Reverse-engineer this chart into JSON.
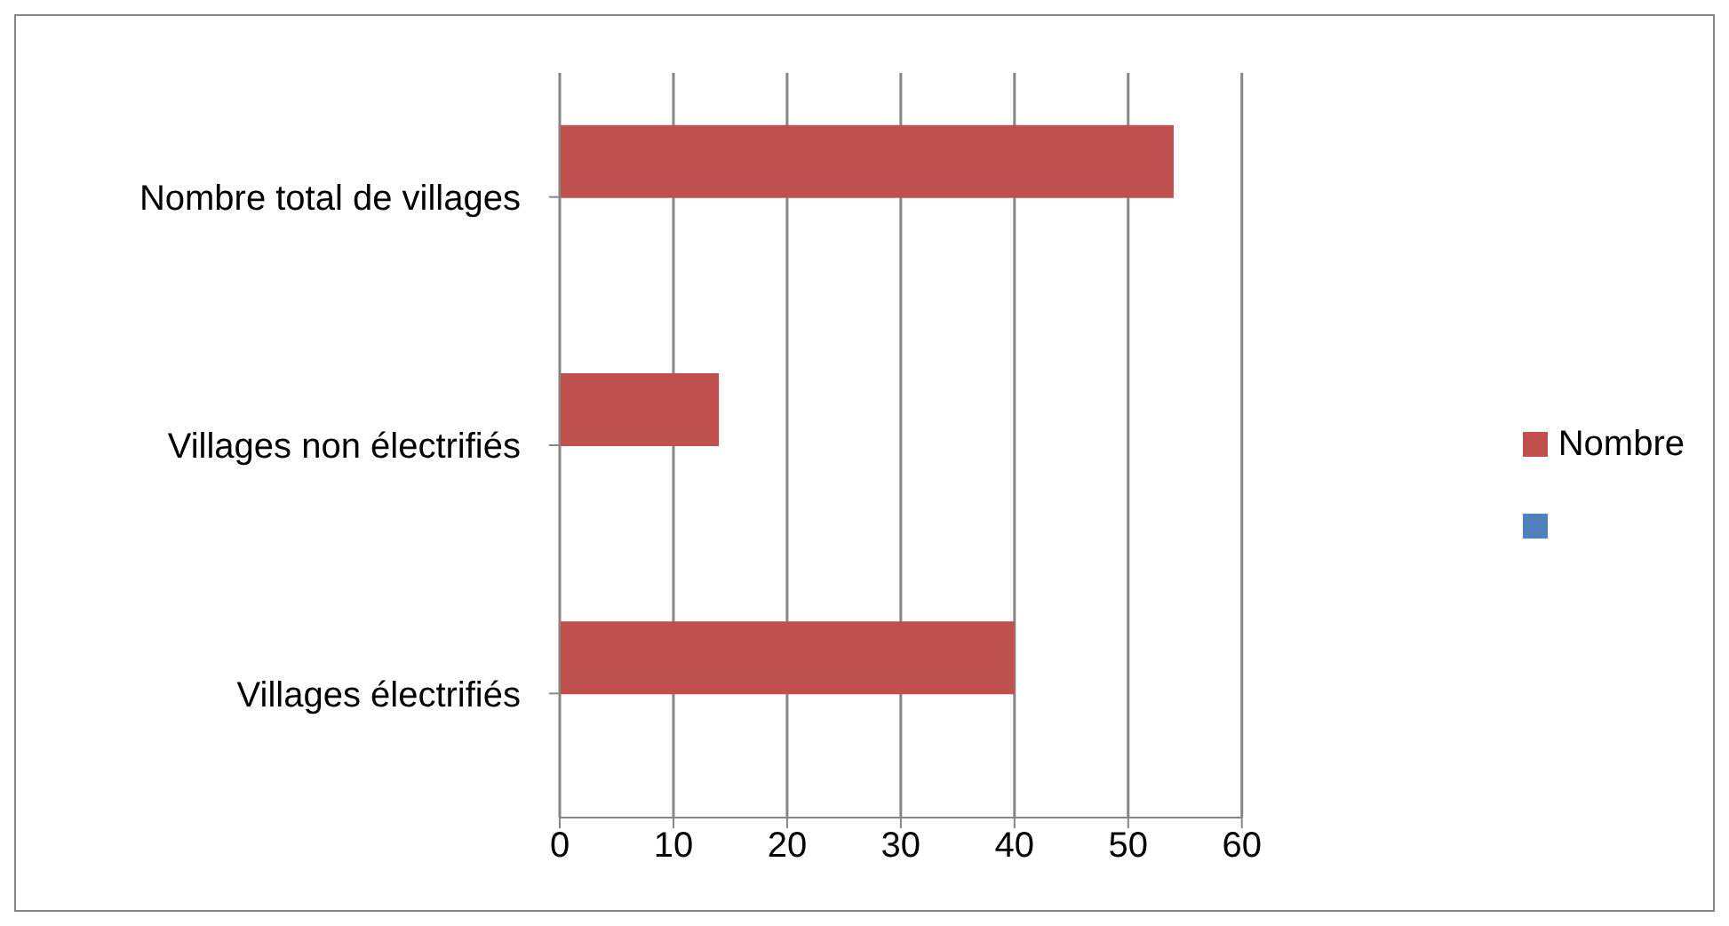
{
  "chart_data": {
    "type": "bar",
    "orientation": "horizontal",
    "categories": [
      "Nombre total de villages",
      "Villages non électrifiés",
      "Villages électrifiés"
    ],
    "series": [
      {
        "name": "Nombre",
        "color": "#c0504d",
        "values": [
          54,
          14,
          40
        ]
      },
      {
        "color": "#4f81bd",
        "values": [
          null,
          null,
          null
        ]
      }
    ],
    "xlim": [
      0,
      60
    ],
    "xticks": [
      0,
      10,
      20,
      30,
      40,
      50,
      60
    ],
    "grid": "x",
    "legend": "right"
  }
}
